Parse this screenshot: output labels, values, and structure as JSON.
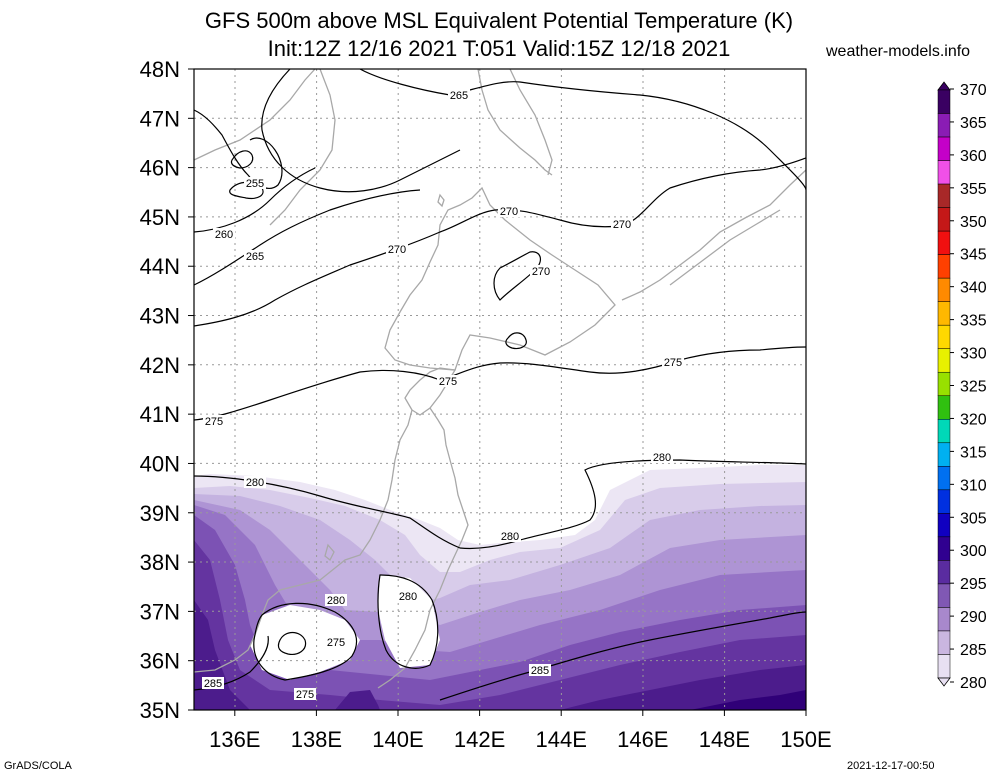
{
  "title_line1": "GFS 500m above MSL Equivalent Potential Temperature (K)",
  "title_line2": "Init:12Z 12/16 2021 T:051 Valid:15Z 12/18 2021",
  "site": "weather-models.info",
  "footer_left": "GrADS/COLA",
  "footer_right": "2021-12-17-00:50",
  "map": {
    "lon_range": [
      135,
      150
    ],
    "lat_range": [
      35,
      48
    ],
    "lat_ticks": [
      "48N",
      "47N",
      "46N",
      "45N",
      "44N",
      "43N",
      "42N",
      "41N",
      "40N",
      "39N",
      "38N",
      "37N",
      "36N",
      "35N"
    ],
    "lon_ticks": [
      "136E",
      "138E",
      "140E",
      "142E",
      "144E",
      "146E",
      "148E",
      "150E"
    ],
    "grid": true
  },
  "colorbar": {
    "labels": [
      "370",
      "365",
      "360",
      "355",
      "350",
      "345",
      "340",
      "335",
      "330",
      "325",
      "320",
      "315",
      "310",
      "305",
      "300",
      "295",
      "290",
      "285",
      "280"
    ],
    "colors": [
      "#3a0062",
      "#8a1cb4",
      "#c400c8",
      "#f050e8",
      "#a82828",
      "#c41818",
      "#f01010",
      "#ff4000",
      "#ff8a00",
      "#ffb800",
      "#ffd800",
      "#e8f000",
      "#98e000",
      "#30c010",
      "#00d8b8",
      "#00b0f0",
      "#0070f0",
      "#0030e0",
      "#1000c0",
      "#300090",
      "#5a2ca0",
      "#8058b4",
      "#a888cc",
      "#cab6e0",
      "#e8e0f2"
    ]
  },
  "contour_labels": [
    "265",
    "255",
    "260",
    "265",
    "270",
    "270",
    "270",
    "270",
    "275",
    "275",
    "275",
    "280",
    "280",
    "280",
    "280",
    "280",
    "275",
    "275",
    "285",
    "285"
  ]
}
